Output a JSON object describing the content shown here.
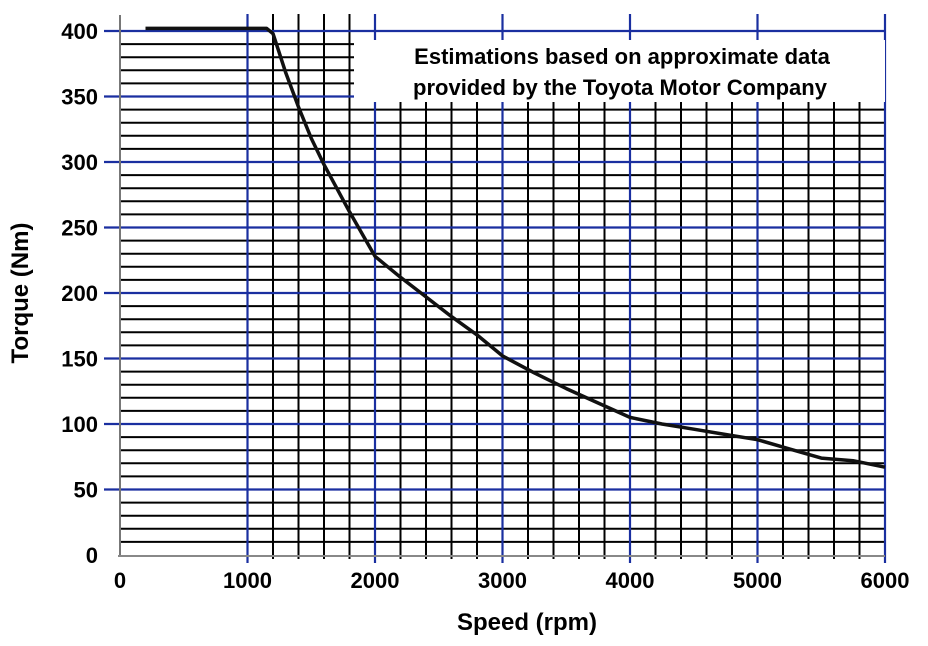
{
  "chart_data": {
    "type": "line",
    "title": "",
    "annotation": [
      "Estimations based on approximate data",
      "provided by the Toyota Motor Company"
    ],
    "xlabel": "Speed (rpm)",
    "ylabel": "Torque (Nm)",
    "xlim": [
      0,
      6000
    ],
    "ylim": [
      0,
      400
    ],
    "xticks": [
      0,
      1000,
      2000,
      3000,
      4000,
      5000,
      6000
    ],
    "yticks": [
      0,
      50,
      100,
      150,
      200,
      250,
      300,
      350,
      400
    ],
    "grid": true,
    "colors": {
      "major_grid": "#1a2fa0",
      "minor_grid": "#000000",
      "line": "#000000"
    },
    "series": [
      {
        "x": [
          200,
          600,
          1000,
          1150,
          1200,
          1300,
          1400,
          1500,
          1600,
          1800,
          2000,
          2200,
          2400,
          2600,
          2800,
          3000,
          3250,
          3500,
          3750,
          4000,
          4250,
          4500,
          4750,
          5000,
          5250,
          5500,
          5750,
          6000
        ],
        "y": [
          402,
          402,
          402,
          402,
          398,
          368,
          342,
          318,
          298,
          262,
          228,
          212,
          197,
          182,
          168,
          152,
          139,
          127,
          116,
          105,
          100,
          96,
          92,
          88,
          81,
          74,
          72,
          67
        ]
      }
    ]
  }
}
